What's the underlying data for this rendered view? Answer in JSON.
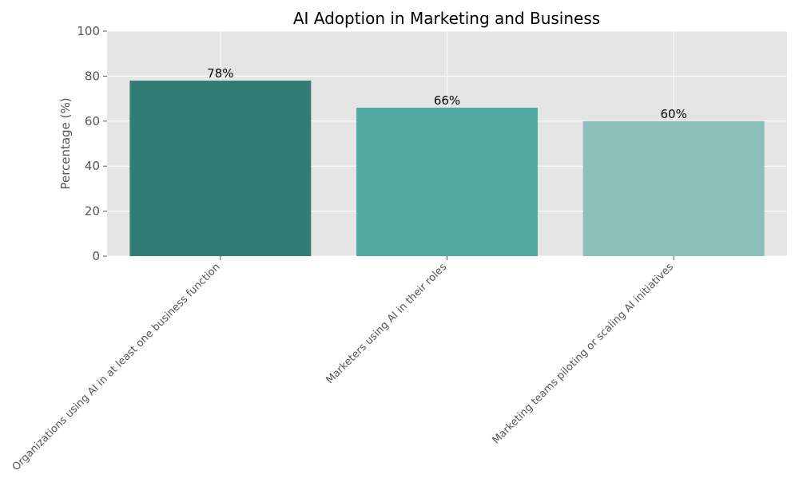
{
  "chart_data": {
    "type": "bar",
    "title": "AI Adoption in Marketing and Business",
    "ylabel": "Percentage (%)",
    "xlabel": "",
    "ylim": [
      0,
      100
    ],
    "yticks": [
      0,
      20,
      40,
      60,
      80,
      100
    ],
    "grid": true,
    "categories": [
      "Organizations using AI in at least one business function",
      "Marketers using AI in their roles",
      "Marketing teams piloting or scaling AI initiatives"
    ],
    "values": [
      78,
      66,
      60
    ],
    "value_labels": [
      "78%",
      "66%",
      "60%"
    ],
    "colors": [
      "#327c74",
      "#54a9a3",
      "#8cbfba"
    ],
    "background_color": "#e5e5e5",
    "grid_color": "#ffffff"
  }
}
